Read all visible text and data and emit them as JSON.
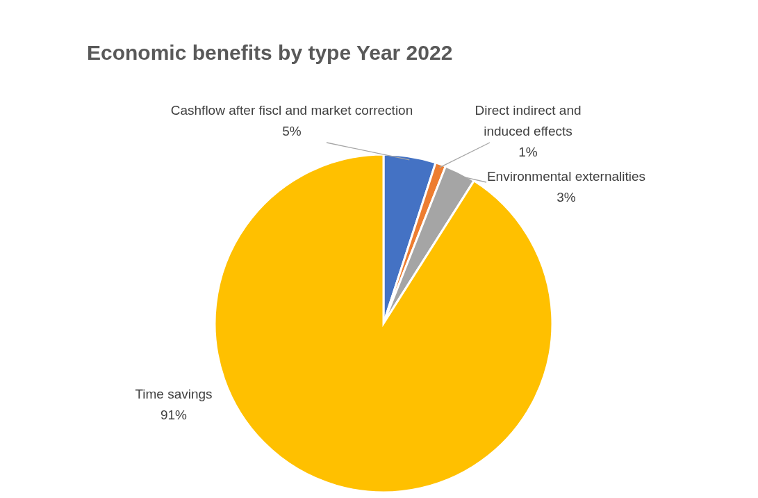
{
  "chart_data": {
    "type": "pie",
    "title": "Economic benefits by type Year 2022",
    "categories": [
      "Cashflow after fiscl and market correction",
      "Direct indirect and induced effects",
      "Environmental externalities",
      "Time savings"
    ],
    "values": [
      5,
      1,
      3,
      91
    ],
    "value_labels": [
      "5%",
      "1%",
      "3%",
      "91%"
    ],
    "colors": [
      "#4472c4",
      "#ed7d31",
      "#a5a5a5",
      "#ffc000"
    ]
  }
}
